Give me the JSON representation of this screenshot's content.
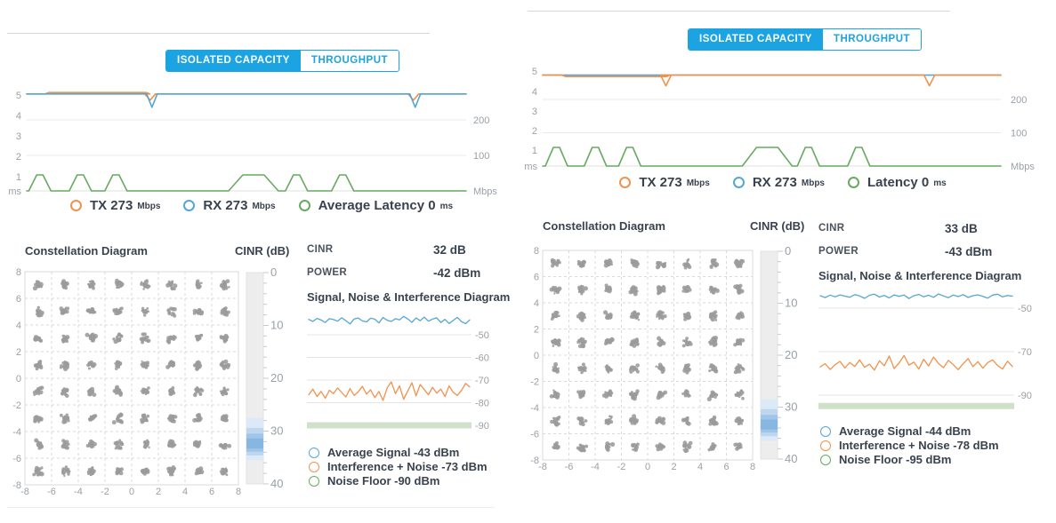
{
  "colors": {
    "accent": "#1ca3e2",
    "tx": "#f0924e",
    "rx": "#55a6d4",
    "latency": "#67aa61",
    "noise_floor_band": "#cfe2c9",
    "axis_text": "#9aa0a6",
    "constellation_dot": "#9b9b9b",
    "gauge_bg": "#ededed",
    "gauge_highlight": [
      "#dce9f6",
      "#bed6ee",
      "#9fc5e8",
      "#87b6e1"
    ]
  },
  "panels": [
    {
      "tabs": [
        {
          "label": "ISOLATED CAPACITY",
          "active": true
        },
        {
          "label": "THROUGHPUT",
          "active": false
        }
      ],
      "chart": {
        "y_left_labels": [
          "5",
          "4",
          "3",
          "2",
          "1",
          "ms"
        ],
        "y_right_labels": [
          "200",
          "100",
          "Mbps"
        ],
        "throughput_mbps": 273,
        "latency_ms": 0,
        "rx_dips": [
          0.285,
          0.884
        ],
        "tx_dips": [
          0.281,
          0.88
        ],
        "latency_spikes": [
          {
            "x": 0.03
          },
          {
            "x": 0.122
          },
          {
            "x": 0.203
          },
          {
            "x": 0.516,
            "wide": true
          },
          {
            "x": 0.614
          },
          {
            "x": 0.719
          }
        ]
      },
      "legend": [
        {
          "label": "TX 273",
          "unit": "Mbps",
          "color": "tx"
        },
        {
          "label": "RX 273",
          "unit": "Mbps",
          "color": "rx"
        },
        {
          "label": "Average Latency 0",
          "unit": "ms",
          "color": "latency"
        }
      ],
      "constellation": {
        "title": "Constellation Diagram",
        "tick_min": -8,
        "tick_max": 8,
        "tick_step": 2
      },
      "gauge": {
        "title": "CINR (dB)",
        "min": 0,
        "max": 40,
        "value": 32,
        "labels": [
          "0",
          "10",
          "20",
          "30",
          "40"
        ]
      },
      "stats": [
        {
          "label": "CINR",
          "value": "32 dB"
        },
        {
          "label": "POWER",
          "value": "-42 dBm"
        }
      ],
      "sni": {
        "title": "Signal, Noise & Interference Diagram",
        "grid_db": [
          -50,
          -60,
          -70,
          -80,
          -90
        ],
        "noise_floor_db": -90,
        "signal_series": [
          -43.2,
          -44.1,
          -42.8,
          -43.5,
          -44.6,
          -42.9,
          -43.3,
          -44.0,
          -42.5,
          -43.8,
          -45.2,
          -43.0,
          -42.6,
          -43.9,
          -44.3,
          -42.7,
          -43.1,
          -44.8,
          -42.4,
          -43.6,
          -44.1,
          -42.9,
          -43.4,
          -41.9,
          -43.0,
          -44.5,
          -42.6,
          -43.8,
          -42.2,
          -44.0,
          -43.1,
          -42.5,
          -44.6,
          -43.2,
          -45.0,
          -43.7,
          -42.3,
          -44.2,
          -45.1,
          -43.4
        ],
        "interference_series": [
          -76.5,
          -74.0,
          -77.2,
          -75.0,
          -78.0,
          -74.5,
          -76.0,
          -73.5,
          -75.5,
          -77.5,
          -73.8,
          -76.8,
          -75.2,
          -72.8,
          -76.2,
          -74.3,
          -77.8,
          -75.0,
          -79.0,
          -73.5,
          -70.8,
          -76.0,
          -72.5,
          -78.5,
          -74.8,
          -71.2,
          -77.0,
          -72.0,
          -74.2,
          -76.5,
          -73.2,
          -75.8,
          -74.0,
          -77.3,
          -72.6,
          -75.4,
          -76.8,
          -74.6,
          -71.5,
          -73.0
        ],
        "legend": [
          {
            "label": "Average Signal -43 dBm",
            "color": "rx"
          },
          {
            "label": "Interference + Noise -73 dBm",
            "color": "tx"
          },
          {
            "label": "Noise Floor -90 dBm",
            "color": "latency"
          }
        ]
      }
    },
    {
      "tabs": [
        {
          "label": "ISOLATED CAPACITY",
          "active": true
        },
        {
          "label": "THROUGHPUT",
          "active": false
        }
      ],
      "chart": {
        "y_left_labels": [
          "5",
          "4",
          "3",
          "2",
          "1",
          "ms"
        ],
        "y_right_labels": [
          "200",
          "100",
          "Mbps"
        ],
        "throughput_mbps": 273,
        "latency_ms": 0,
        "rx_dips": [],
        "tx_dips": [
          0.269,
          0.844
        ],
        "latency_spikes": [
          {
            "x": 0.03
          },
          {
            "x": 0.115
          },
          {
            "x": 0.19
          },
          {
            "x": 0.49,
            "wide": true
          },
          {
            "x": 0.58
          },
          {
            "x": 0.69
          }
        ]
      },
      "legend": [
        {
          "label": "TX 273",
          "unit": "Mbps",
          "color": "tx"
        },
        {
          "label": "RX 273",
          "unit": "Mbps",
          "color": "rx"
        },
        {
          "label": "Latency 0",
          "unit": "ms",
          "color": "latency"
        }
      ],
      "constellation": {
        "title": "Constellation Diagram",
        "tick_min": -8,
        "tick_max": 8,
        "tick_step": 2
      },
      "gauge": {
        "title": "CINR (dB)",
        "min": 0,
        "max": 40,
        "value": 33,
        "labels": [
          "0",
          "10",
          "20",
          "30",
          "40"
        ]
      },
      "stats": [
        {
          "label": "CINR",
          "value": "33 dB"
        },
        {
          "label": "POWER",
          "value": "-43 dBm"
        }
      ],
      "sni": {
        "title": "Signal, Noise & Interference Diagram",
        "grid_db": [
          -50,
          -70,
          -90
        ],
        "noise_floor_db": -95,
        "signal_series": [
          -44.3,
          -45.2,
          -44.0,
          -44.8,
          -43.9,
          -44.5,
          -45.0,
          -43.8,
          -44.4,
          -45.5,
          -44.1,
          -43.6,
          -44.9,
          -44.2,
          -45.3,
          -43.9,
          -44.6,
          -44.0,
          -45.6,
          -44.3,
          -43.7,
          -44.8,
          -44.1,
          -45.0,
          -43.5,
          -44.4,
          -45.2,
          -44.0,
          -44.7,
          -43.8,
          -45.1,
          -44.3,
          -43.9,
          -44.6,
          -45.4,
          -44.0,
          -43.6,
          -44.8,
          -44.2,
          -44.5
        ],
        "interference_series": [
          -77.0,
          -75.5,
          -78.2,
          -76.0,
          -74.5,
          -77.5,
          -75.0,
          -76.8,
          -73.8,
          -77.2,
          -75.8,
          -78.5,
          -74.2,
          -76.5,
          -72.0,
          -77.8,
          -75.2,
          -71.8,
          -76.2,
          -74.8,
          -78.0,
          -73.5,
          -76.6,
          -72.5,
          -75.4,
          -77.4,
          -74.0,
          -76.0,
          -78.3,
          -75.6,
          -73.2,
          -76.9,
          -74.6,
          -77.6,
          -75.0,
          -73.8,
          -76.4,
          -78.0,
          -74.4,
          -76.8
        ],
        "legend": [
          {
            "label": "Average Signal -44 dBm",
            "color": "rx"
          },
          {
            "label": "Interference + Noise -78 dBm",
            "color": "tx"
          },
          {
            "label": "Noise Floor -95 dBm",
            "color": "latency"
          }
        ]
      }
    }
  ]
}
